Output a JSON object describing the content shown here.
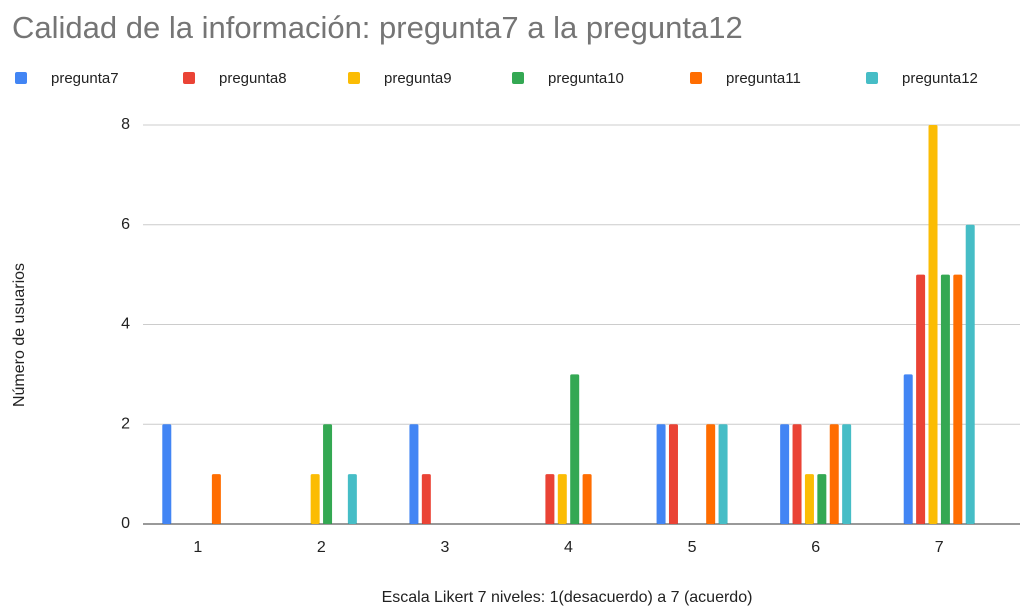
{
  "chart_data": {
    "type": "bar",
    "title": "Calidad de la información: pregunta7 a la pregunta12",
    "xlabel": "Escala Likert 7 niveles: 1(desacuerdo) a 7 (acuerdo)",
    "ylabel": "Número de usuarios",
    "categories": [
      "1",
      "2",
      "3",
      "4",
      "5",
      "6",
      "7"
    ],
    "series": [
      {
        "name": "pregunta7",
        "color": "#4285f4",
        "values": [
          2,
          0,
          2,
          0,
          2,
          2,
          3
        ]
      },
      {
        "name": "pregunta8",
        "color": "#ea4335",
        "values": [
          0,
          0,
          1,
          1,
          2,
          2,
          5
        ]
      },
      {
        "name": "pregunta9",
        "color": "#fbbc04",
        "values": [
          0,
          1,
          0,
          1,
          0,
          1,
          8
        ]
      },
      {
        "name": "pregunta10",
        "color": "#34a853",
        "values": [
          0,
          2,
          0,
          3,
          0,
          1,
          5
        ]
      },
      {
        "name": "pregunta11",
        "color": "#ff6d01",
        "values": [
          1,
          0,
          0,
          1,
          2,
          2,
          5
        ]
      },
      {
        "name": "pregunta12",
        "color": "#46bdc6",
        "values": [
          0,
          1,
          0,
          0,
          2,
          2,
          6
        ]
      }
    ],
    "ylim": [
      0,
      8
    ],
    "yticks": [
      0,
      2,
      4,
      6,
      8
    ],
    "grid": true,
    "legend": "top"
  }
}
